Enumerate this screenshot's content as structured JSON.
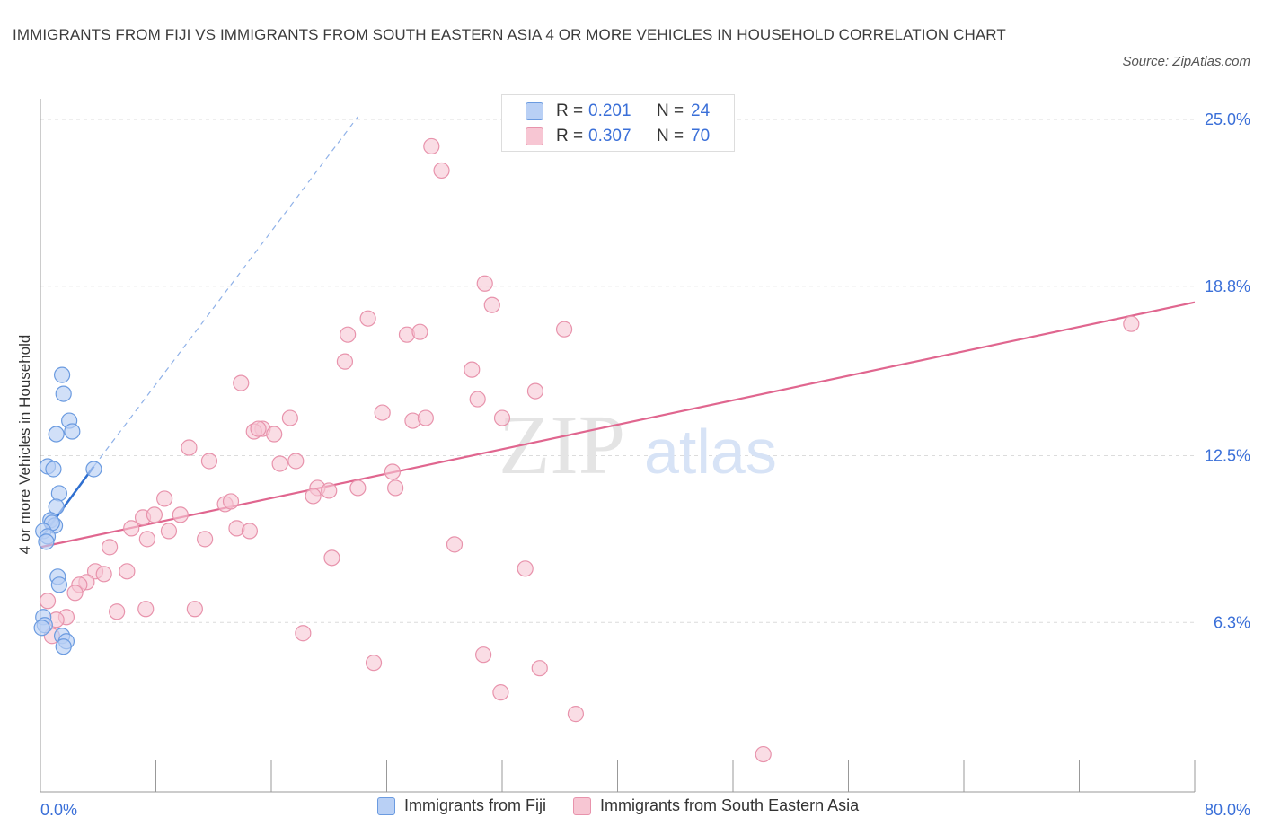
{
  "header": {
    "title": "IMMIGRANTS FROM FIJI VS IMMIGRANTS FROM SOUTH EASTERN ASIA 4 OR MORE VEHICLES IN HOUSEHOLD CORRELATION CHART",
    "source": "Source: ZipAtlas.com"
  },
  "watermark": {
    "zip": "ZIP",
    "atlas": "atlas"
  },
  "stats": {
    "series1": {
      "r_label": "R =",
      "r_value": "0.201",
      "n_label": "N =",
      "n_value": "24"
    },
    "series2": {
      "r_label": "R =",
      "r_value": "0.307",
      "n_label": "N =",
      "n_value": "70"
    }
  },
  "colors": {
    "fiji_fill": "#b9d0f5",
    "fiji_stroke": "#6b9be0",
    "fiji_line": "#2f6fd0",
    "sea_fill": "#f7c6d3",
    "sea_stroke": "#e893ac",
    "sea_line": "#e0668f",
    "tick_label": "#3a6fd8",
    "grid": "#dcdcdc"
  },
  "chart_data": {
    "type": "scatter",
    "title": "IMMIGRANTS FROM FIJI VS IMMIGRANTS FROM SOUTH EASTERN ASIA 4 OR MORE VEHICLES IN HOUSEHOLD CORRELATION CHART",
    "xlabel": "",
    "ylabel": "4 or more Vehicles in Household",
    "xlim": [
      0,
      80
    ],
    "ylim": [
      0,
      25.5
    ],
    "x_tick_labels": [
      "0.0%",
      "80.0%"
    ],
    "y_ticks": [
      6.3,
      12.5,
      18.8,
      25.0
    ],
    "y_tick_labels": [
      "6.3%",
      "12.5%",
      "18.8%",
      "25.0%"
    ],
    "grid": true,
    "legend_position": "bottom",
    "series": [
      {
        "name": "Immigrants from Fiji",
        "r": 0.201,
        "n": 24,
        "trend": {
          "x": [
            0.0,
            3.7
          ],
          "y": [
            9.4,
            12.1
          ]
        },
        "trend_extended": {
          "x": [
            3.7,
            22.0
          ],
          "y": [
            12.1,
            25.1
          ]
        },
        "points": [
          [
            1.5,
            15.5
          ],
          [
            1.6,
            14.8
          ],
          [
            2.0,
            13.8
          ],
          [
            2.2,
            13.4
          ],
          [
            1.1,
            13.3
          ],
          [
            3.7,
            12.0
          ],
          [
            0.5,
            12.1
          ],
          [
            0.9,
            12.0
          ],
          [
            1.3,
            11.1
          ],
          [
            1.1,
            10.6
          ],
          [
            0.7,
            10.1
          ],
          [
            1.0,
            9.9
          ],
          [
            0.8,
            10.0
          ],
          [
            0.2,
            9.7
          ],
          [
            0.5,
            9.5
          ],
          [
            0.4,
            9.3
          ],
          [
            1.2,
            8.0
          ],
          [
            1.3,
            7.7
          ],
          [
            0.2,
            6.5
          ],
          [
            0.3,
            6.2
          ],
          [
            1.5,
            5.8
          ],
          [
            1.8,
            5.6
          ],
          [
            1.6,
            5.4
          ],
          [
            0.1,
            6.1
          ]
        ]
      },
      {
        "name": "Immigrants from South Eastern Asia",
        "r": 0.307,
        "n": 70,
        "trend": {
          "x": [
            0.0,
            80.0
          ],
          "y": [
            9.1,
            18.2
          ]
        },
        "points": [
          [
            27.1,
            24.0
          ],
          [
            27.8,
            23.1
          ],
          [
            30.8,
            18.9
          ],
          [
            31.3,
            18.1
          ],
          [
            36.3,
            17.2
          ],
          [
            75.6,
            17.4
          ],
          [
            22.7,
            17.6
          ],
          [
            21.3,
            17.0
          ],
          [
            25.4,
            17.0
          ],
          [
            26.3,
            17.1
          ],
          [
            21.1,
            16.0
          ],
          [
            29.9,
            15.7
          ],
          [
            13.9,
            15.2
          ],
          [
            34.3,
            14.9
          ],
          [
            30.3,
            14.6
          ],
          [
            23.7,
            14.1
          ],
          [
            25.8,
            13.8
          ],
          [
            26.7,
            13.9
          ],
          [
            17.3,
            13.9
          ],
          [
            32.0,
            13.9
          ],
          [
            15.4,
            13.5
          ],
          [
            14.8,
            13.4
          ],
          [
            15.1,
            13.5
          ],
          [
            16.2,
            13.3
          ],
          [
            10.3,
            12.8
          ],
          [
            11.7,
            12.3
          ],
          [
            16.6,
            12.2
          ],
          [
            17.7,
            12.3
          ],
          [
            24.4,
            11.9
          ],
          [
            19.2,
            11.3
          ],
          [
            20.0,
            11.2
          ],
          [
            22.0,
            11.3
          ],
          [
            24.6,
            11.3
          ],
          [
            18.9,
            11.0
          ],
          [
            8.6,
            10.9
          ],
          [
            12.8,
            10.7
          ],
          [
            13.2,
            10.8
          ],
          [
            7.1,
            10.2
          ],
          [
            7.9,
            10.3
          ],
          [
            9.7,
            10.3
          ],
          [
            6.3,
            9.8
          ],
          [
            8.9,
            9.7
          ],
          [
            13.6,
            9.8
          ],
          [
            14.5,
            9.7
          ],
          [
            7.4,
            9.4
          ],
          [
            11.4,
            9.4
          ],
          [
            4.8,
            9.1
          ],
          [
            28.7,
            9.2
          ],
          [
            20.2,
            8.7
          ],
          [
            6.0,
            8.2
          ],
          [
            3.8,
            8.2
          ],
          [
            4.4,
            8.1
          ],
          [
            33.6,
            8.3
          ],
          [
            3.2,
            7.8
          ],
          [
            2.7,
            7.7
          ],
          [
            2.4,
            7.4
          ],
          [
            0.5,
            7.1
          ],
          [
            1.8,
            6.5
          ],
          [
            1.1,
            6.4
          ],
          [
            5.3,
            6.7
          ],
          [
            7.3,
            6.8
          ],
          [
            10.7,
            6.8
          ],
          [
            0.8,
            5.8
          ],
          [
            18.2,
            5.9
          ],
          [
            30.7,
            5.1
          ],
          [
            23.1,
            4.8
          ],
          [
            34.6,
            4.6
          ],
          [
            31.9,
            3.7
          ],
          [
            37.1,
            2.9
          ],
          [
            50.1,
            1.4
          ]
        ]
      }
    ]
  },
  "legend": {
    "item1": "Immigrants from Fiji",
    "item2": "Immigrants from South Eastern Asia"
  },
  "ylabel": "4 or more Vehicles in Household",
  "xaxis": {
    "min_label": "0.0%",
    "max_label": "80.0%"
  }
}
